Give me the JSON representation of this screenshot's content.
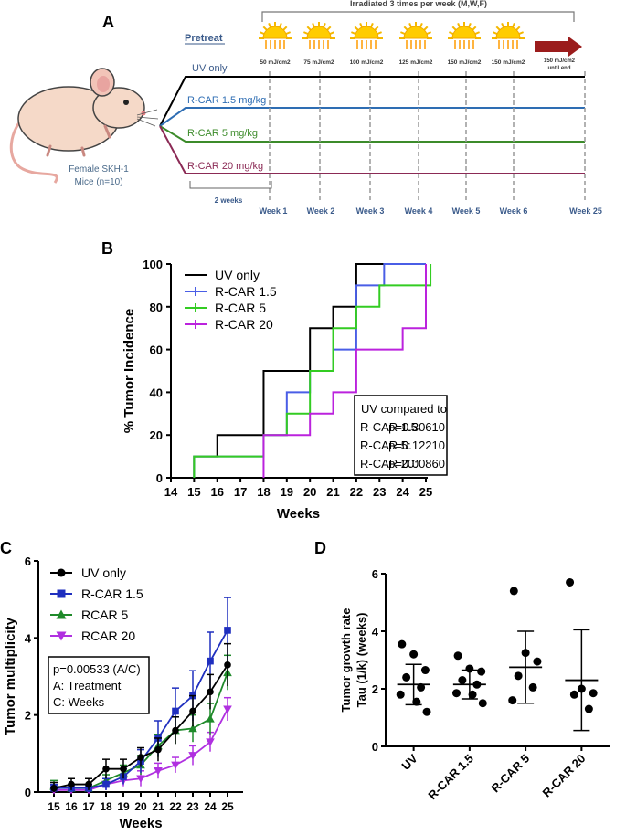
{
  "panels": {
    "A": {
      "label": "A",
      "bracket_title": "Irradiated 3 times per week (M,W,F)",
      "pretreat": "Pretreat",
      "mouse_caption": [
        "Female SKH-1",
        "Mice (n=10)"
      ],
      "duration": "2 weeks",
      "doses": [
        "50 mJ/cm2",
        "75 mJ/cm2",
        "100 mJ/cm2",
        "125 mJ/cm2",
        "150 mJ/cm2",
        "150 mJ/cm2"
      ],
      "final_dose": [
        "150 mJ/cm2",
        "until end"
      ],
      "groups": [
        {
          "label": "UV only",
          "color": "#000000"
        },
        {
          "label": "R-CAR 1.5 mg/kg",
          "color": "#2e6db3"
        },
        {
          "label": "R-CAR 5 mg/kg",
          "color": "#3c8b2a"
        },
        {
          "label": "R-CAR 20 mg/kg",
          "color": "#8b2a55"
        }
      ],
      "weeks": [
        "Week 1",
        "Week 2",
        "Week 3",
        "Week 4",
        "Week 5",
        "Week 6",
        "Week 25"
      ]
    },
    "B": {
      "label": "B"
    },
    "C": {
      "label": "C"
    },
    "D": {
      "label": "D"
    }
  },
  "chart_data": [
    {
      "id": "B",
      "type": "line",
      "subtype": "step",
      "xlabel": "Weeks",
      "ylabel": "% Tumor Incidence",
      "xlim": [
        14,
        25
      ],
      "ylim": [
        0,
        100
      ],
      "xticks": [
        14,
        15,
        16,
        17,
        18,
        19,
        20,
        21,
        22,
        23,
        24,
        25
      ],
      "yticks": [
        0,
        20,
        40,
        60,
        80,
        100
      ],
      "series": [
        {
          "name": "UV only",
          "color": "#000000",
          "steps": [
            [
              15,
              0
            ],
            [
              15,
              10
            ],
            [
              16,
              20
            ],
            [
              18,
              50
            ],
            [
              20,
              70
            ],
            [
              21,
              80
            ],
            [
              22,
              100
            ]
          ]
        },
        {
          "name": "R-CAR 1.5",
          "color": "#4a5ee6",
          "steps": [
            [
              15,
              0
            ],
            [
              15,
              10
            ],
            [
              18,
              20
            ],
            [
              19,
              40
            ],
            [
              20,
              50
            ],
            [
              21,
              60
            ],
            [
              22,
              90
            ],
            [
              23.2,
              100
            ]
          ]
        },
        {
          "name": "R-CAR 5",
          "color": "#33cc22",
          "steps": [
            [
              15,
              0
            ],
            [
              15,
              10
            ],
            [
              18,
              20
            ],
            [
              19,
              30
            ],
            [
              20,
              50
            ],
            [
              21,
              70
            ],
            [
              22,
              80
            ],
            [
              23,
              90
            ],
            [
              25.2,
              100
            ]
          ]
        },
        {
          "name": "R-CAR 20",
          "color": "#bb22dd",
          "steps": [
            [
              18,
              0
            ],
            [
              18,
              20
            ],
            [
              20,
              30
            ],
            [
              21,
              40
            ],
            [
              22,
              60
            ],
            [
              24,
              70
            ],
            [
              25,
              100
            ]
          ]
        }
      ],
      "stats": {
        "title": "UV compared to",
        "rows": [
          {
            "label": "R-CAR 1.5:",
            "p": "p=0.30610"
          },
          {
            "label": "R-CAR 5:",
            "p": "p=0.12210"
          },
          {
            "label": "R-CAR 20:",
            "p": "p=0.00860"
          }
        ]
      }
    },
    {
      "id": "C",
      "type": "line",
      "xlabel": "Weeks",
      "ylabel": "Tumor multiplicity",
      "xlim": [
        15,
        25
      ],
      "ylim": [
        0,
        6
      ],
      "x": [
        15,
        16,
        17,
        18,
        19,
        20,
        21,
        22,
        23,
        24,
        25
      ],
      "yticks": [
        0,
        2,
        4,
        6
      ],
      "series": [
        {
          "name": "UV only",
          "color": "#000000",
          "marker": "circle",
          "values": [
            0.1,
            0.2,
            0.2,
            0.6,
            0.6,
            0.9,
            1.1,
            1.6,
            2.1,
            2.6,
            3.3
          ],
          "errors": [
            0.15,
            0.15,
            0.15,
            0.25,
            0.25,
            0.25,
            0.3,
            0.35,
            0.4,
            0.45,
            0.55
          ]
        },
        {
          "name": "R-CAR 1.5",
          "color": "#1f2fbf",
          "marker": "square",
          "values": [
            0.1,
            0.1,
            0.1,
            0.2,
            0.4,
            0.8,
            1.4,
            2.1,
            2.5,
            3.4,
            4.2
          ],
          "errors": [
            0.1,
            0.1,
            0.1,
            0.15,
            0.2,
            0.3,
            0.45,
            0.6,
            0.65,
            0.75,
            0.85
          ]
        },
        {
          "name": "RCAR 5",
          "color": "#1f8a2a",
          "marker": "triangle-up",
          "values": [
            0.15,
            0.1,
            0.1,
            0.3,
            0.5,
            0.7,
            1.2,
            1.6,
            1.65,
            1.9,
            3.1
          ],
          "errors": [
            0.15,
            0.1,
            0.1,
            0.15,
            0.2,
            0.25,
            0.3,
            0.35,
            0.35,
            0.4,
            0.45
          ]
        },
        {
          "name": "RCAR 20",
          "color": "#b030e0",
          "marker": "triangle-down",
          "values": [
            0.05,
            0.05,
            0.05,
            0.2,
            0.3,
            0.35,
            0.55,
            0.7,
            0.95,
            1.3,
            2.15
          ],
          "errors": [
            0.05,
            0.05,
            0.05,
            0.15,
            0.15,
            0.2,
            0.2,
            0.2,
            0.25,
            0.25,
            0.3
          ]
        }
      ],
      "stats": {
        "lines": [
          "p=0.00533 (A/C)",
          "A: Treatment",
          "C: Weeks"
        ]
      }
    },
    {
      "id": "D",
      "type": "scatter",
      "ylabel": [
        "Tumor growth rate",
        "Tau (1/k) (weeks)"
      ],
      "ylim": [
        0,
        6
      ],
      "yticks": [
        0,
        2,
        4,
        6
      ],
      "categories": [
        "UV",
        "R-CAR 1.5",
        "R-CAR 5",
        "R-CAR 20"
      ],
      "points": [
        [
          3.55,
          3.2,
          2.65,
          2.4,
          2.05,
          1.8,
          1.55,
          1.2
        ],
        [
          3.15,
          2.7,
          2.6,
          2.3,
          2.15,
          1.85,
          1.8,
          1.5
        ],
        [
          5.4,
          3.25,
          2.95,
          2.45,
          2.05,
          1.6
        ],
        [
          5.7,
          2.0,
          1.85,
          1.8,
          1.3
        ]
      ],
      "mean": [
        2.15,
        2.15,
        2.75,
        2.3
      ],
      "sd_low": [
        1.45,
        1.65,
        1.5,
        0.55
      ],
      "sd_high": [
        2.85,
        2.65,
        4.0,
        4.05
      ]
    }
  ]
}
